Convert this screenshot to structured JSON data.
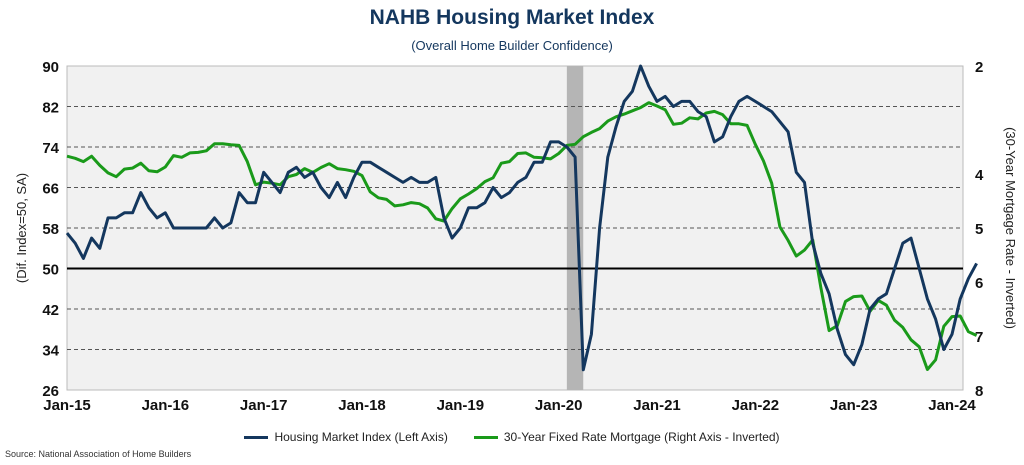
{
  "chart_data": {
    "type": "line",
    "title": "NAHB Housing Market Index",
    "subtitle": "(Overall Home Builder Confidence)",
    "ylabel_left": "(Dif. Index=50, SA)",
    "ylabel_right": "(30-Year Mortgage Rate - Inverted)",
    "source": "Source: National Association of Home Builders",
    "x_ticks": [
      "Jan-15",
      "Jan-16",
      "Jan-17",
      "Jan-18",
      "Jan-19",
      "Jan-20",
      "Jan-21",
      "Jan-22",
      "Jan-23",
      "Jan-24"
    ],
    "left_ticks": [
      "26",
      "34",
      "42",
      "50",
      "58",
      "66",
      "74",
      "82",
      "90"
    ],
    "right_ticks": [
      "2",
      "4",
      "5",
      "6",
      "7",
      "8"
    ],
    "ylim_left": [
      26,
      90
    ],
    "ylim_right_inverted": [
      8,
      2
    ],
    "reference_line": 50,
    "recession_shading": {
      "start": "2020-02",
      "end": "2020-04"
    },
    "grid": "dashed horizontal",
    "legend_position": "bottom",
    "series": [
      {
        "name": "Housing Market Index (Left Axis)",
        "axis": "left",
        "color": "#14375e",
        "start": "2015-01",
        "values": [
          57,
          55,
          52,
          56,
          54,
          60,
          60,
          61,
          61,
          65,
          62,
          60,
          61,
          58,
          58,
          58,
          58,
          58,
          60,
          58,
          59,
          65,
          63,
          63,
          69,
          67,
          65,
          69,
          70,
          68,
          69,
          66,
          64,
          67,
          64,
          68,
          71,
          71,
          70,
          69,
          68,
          67,
          68,
          67,
          67,
          68,
          60,
          56,
          58,
          62,
          62,
          63,
          66,
          64,
          65,
          67,
          68,
          71,
          71,
          75,
          75,
          74,
          72,
          30,
          37,
          58,
          72,
          78,
          83,
          85,
          90,
          86,
          83,
          84,
          82,
          83,
          83,
          81,
          80,
          75,
          76,
          80,
          83,
          84,
          83,
          82,
          81,
          79,
          77,
          69,
          67,
          55,
          49,
          45,
          38,
          33,
          31,
          35,
          42,
          44,
          45,
          50,
          55,
          56,
          50,
          44,
          40,
          34,
          37,
          44,
          48,
          51
        ]
      },
      {
        "name": "30-Year Fixed Rate Mortgage (Right Axis - Inverted)",
        "axis": "right",
        "color": "#1a9a1a",
        "start": "2015-01",
        "values": [
          3.67,
          3.71,
          3.77,
          3.67,
          3.84,
          3.98,
          4.05,
          3.91,
          3.89,
          3.8,
          3.94,
          3.96,
          3.87,
          3.66,
          3.69,
          3.61,
          3.6,
          3.57,
          3.44,
          3.44,
          3.46,
          3.47,
          3.77,
          4.2,
          4.15,
          4.17,
          4.2,
          4.05,
          4.01,
          3.9,
          3.97,
          3.88,
          3.81,
          3.9,
          3.92,
          3.95,
          4.03,
          4.33,
          4.44,
          4.47,
          4.59,
          4.57,
          4.53,
          4.55,
          4.63,
          4.83,
          4.87,
          4.64,
          4.46,
          4.37,
          4.27,
          4.14,
          4.07,
          3.8,
          3.77,
          3.62,
          3.61,
          3.69,
          3.7,
          3.72,
          3.62,
          3.47,
          3.45,
          3.31,
          3.23,
          3.16,
          3.02,
          2.94,
          2.89,
          2.83,
          2.77,
          2.68,
          2.74,
          2.81,
          3.08,
          3.06,
          2.96,
          2.98,
          2.87,
          2.84,
          2.9,
          3.07,
          3.07,
          3.1,
          3.45,
          3.76,
          4.17,
          4.98,
          5.23,
          5.52,
          5.41,
          5.22,
          6.11,
          6.9,
          6.81,
          6.36,
          6.27,
          6.26,
          6.54,
          6.34,
          6.43,
          6.71,
          6.84,
          7.07,
          7.2,
          7.62,
          7.44,
          6.82,
          6.64,
          6.63,
          6.92,
          6.99
        ]
      }
    ]
  }
}
